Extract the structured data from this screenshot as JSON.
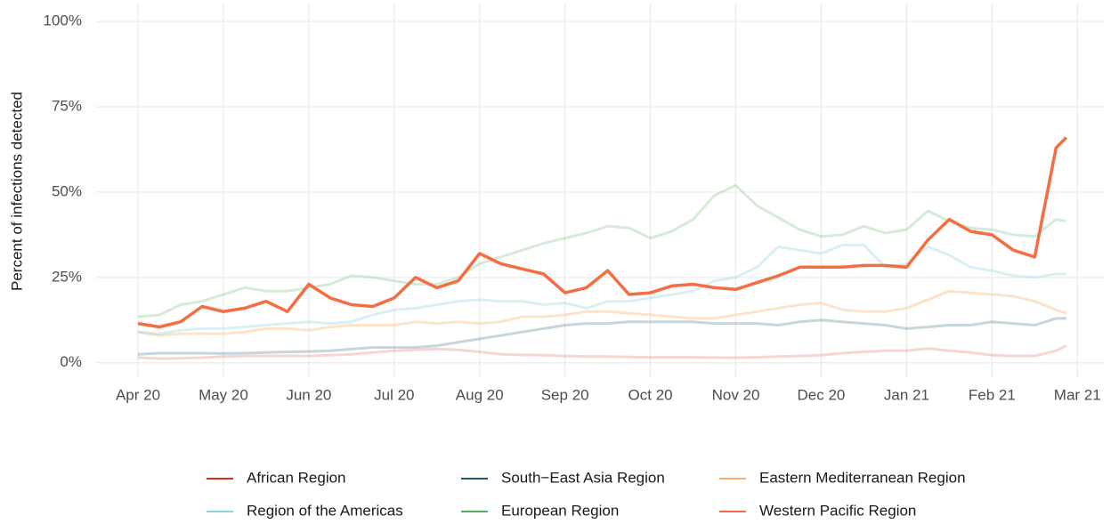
{
  "chart_data": {
    "type": "line",
    "y_label": "Percent of infections detected",
    "x": [
      0,
      0.25,
      0.5,
      0.75,
      1,
      1.25,
      1.5,
      1.75,
      2,
      2.25,
      2.5,
      2.75,
      3,
      3.25,
      3.5,
      3.75,
      4,
      4.25,
      4.5,
      4.75,
      5,
      5.25,
      5.5,
      5.75,
      6,
      6.25,
      6.5,
      6.75,
      7,
      7.25,
      7.5,
      7.75,
      8,
      8.25,
      8.5,
      8.75,
      9,
      9.25,
      9.5,
      9.75,
      10,
      10.25,
      10.5,
      10.75,
      10.87
    ],
    "xlim": [
      -0.49,
      11.31
    ],
    "xticks": [
      {
        "value": 0,
        "label": "Apr 20"
      },
      {
        "value": 1,
        "label": "May 20"
      },
      {
        "value": 2,
        "label": "Jun 20"
      },
      {
        "value": 3,
        "label": "Jul 20"
      },
      {
        "value": 4,
        "label": "Aug 20"
      },
      {
        "value": 5,
        "label": "Sep 20"
      },
      {
        "value": 6,
        "label": "Oct 20"
      },
      {
        "value": 7,
        "label": "Nov 20"
      },
      {
        "value": 8,
        "label": "Dec 20"
      },
      {
        "value": 9,
        "label": "Jan 21"
      },
      {
        "value": 10,
        "label": "Feb 21"
      },
      {
        "value": 11,
        "label": "Mar 21"
      }
    ],
    "ylim": [
      -4.5,
      105
    ],
    "yticks": [
      {
        "value": 0,
        "label": "0%"
      },
      {
        "value": 25,
        "label": "25%"
      },
      {
        "value": 50,
        "label": "50%"
      },
      {
        "value": 75,
        "label": "75%"
      },
      {
        "value": 100,
        "label": "100%"
      }
    ],
    "grid": true,
    "legend": "bottom",
    "series": [
      {
        "name": "African Region",
        "color": "#d7301f",
        "opacity": 0.2,
        "values": [
          1.5,
          1.2,
          1.3,
          1.5,
          1.8,
          2,
          2,
          2,
          2,
          2.2,
          2.5,
          3,
          3.5,
          3.8,
          4,
          3.8,
          3.2,
          2.5,
          2.3,
          2.2,
          2,
          1.8,
          1.8,
          1.7,
          1.6,
          1.6,
          1.6,
          1.5,
          1.5,
          1.6,
          1.8,
          2,
          2.2,
          2.8,
          3.2,
          3.5,
          3.5,
          4.2,
          3.5,
          3,
          2.2,
          2,
          2,
          3.5,
          5
        ]
      },
      {
        "name": "South−East Asia Region",
        "color": "#1d5b73",
        "opacity": 0.25,
        "values": [
          2.5,
          2.8,
          2.8,
          2.8,
          2.7,
          2.8,
          3,
          3.2,
          3.3,
          3.5,
          4,
          4.5,
          4.5,
          4.5,
          5,
          6,
          7,
          8,
          9,
          10,
          11,
          11.5,
          11.5,
          12,
          12,
          12,
          12,
          11.5,
          11.5,
          11.5,
          11,
          12,
          12.5,
          12,
          11.5,
          11,
          10,
          10.5,
          11,
          11,
          12,
          11.5,
          11,
          13,
          13
        ]
      },
      {
        "name": "Eastern Mediterranean Region",
        "color": "#fdae6b",
        "opacity": 0.35,
        "values": [
          9,
          8,
          8.5,
          8.5,
          8.5,
          9,
          10,
          10,
          9.5,
          10.5,
          11,
          11,
          11,
          12,
          11.5,
          12,
          11.5,
          12,
          13.5,
          13.5,
          14,
          15,
          15,
          14.5,
          14,
          13.5,
          13,
          13,
          14,
          15,
          16,
          17,
          17.5,
          15.5,
          15,
          15,
          16,
          18.5,
          21,
          20.5,
          20,
          19.5,
          18,
          15.5,
          14.5
        ]
      },
      {
        "name": "Region of the Americas",
        "color": "#8fd3e0",
        "opacity": 0.35,
        "values": [
          9,
          8.5,
          9.5,
          10,
          10,
          10.5,
          11,
          11.5,
          12,
          11.5,
          12,
          14,
          15.5,
          16,
          17,
          18,
          18.5,
          18,
          18,
          17,
          17.5,
          16,
          18,
          18,
          19,
          20,
          21,
          24,
          25,
          28,
          34,
          33,
          32,
          34.5,
          34.5,
          28,
          29,
          34,
          31.5,
          28,
          27,
          25.5,
          25,
          26,
          26
        ]
      },
      {
        "name": "European Region",
        "color": "#5aae61",
        "opacity": 0.25,
        "values": [
          13.5,
          14,
          17,
          18,
          20,
          22,
          21,
          21,
          22,
          23,
          25.5,
          25,
          24,
          23,
          23,
          25,
          29,
          31,
          33,
          35,
          36.5,
          38,
          40,
          39.5,
          36.5,
          38.5,
          42,
          49,
          52,
          46,
          42.5,
          39,
          37,
          37.5,
          40,
          38,
          39,
          44.5,
          41.5,
          39.5,
          39,
          37.5,
          37,
          42,
          41.5
        ]
      },
      {
        "name": "Western Pacific Region",
        "color": "#f46d43",
        "opacity": 1,
        "values": [
          11.5,
          10.5,
          12,
          16.5,
          15,
          16,
          18,
          15,
          23,
          19,
          17,
          16.5,
          19,
          25,
          22,
          24,
          32,
          29,
          27.5,
          26,
          20.5,
          22,
          27,
          20,
          20.5,
          22.5,
          23,
          22,
          21.5,
          23.5,
          25.5,
          28,
          28,
          28,
          28.5,
          28.5,
          28,
          36,
          42,
          38.5,
          37.5,
          33,
          31,
          63,
          66
        ]
      }
    ]
  }
}
